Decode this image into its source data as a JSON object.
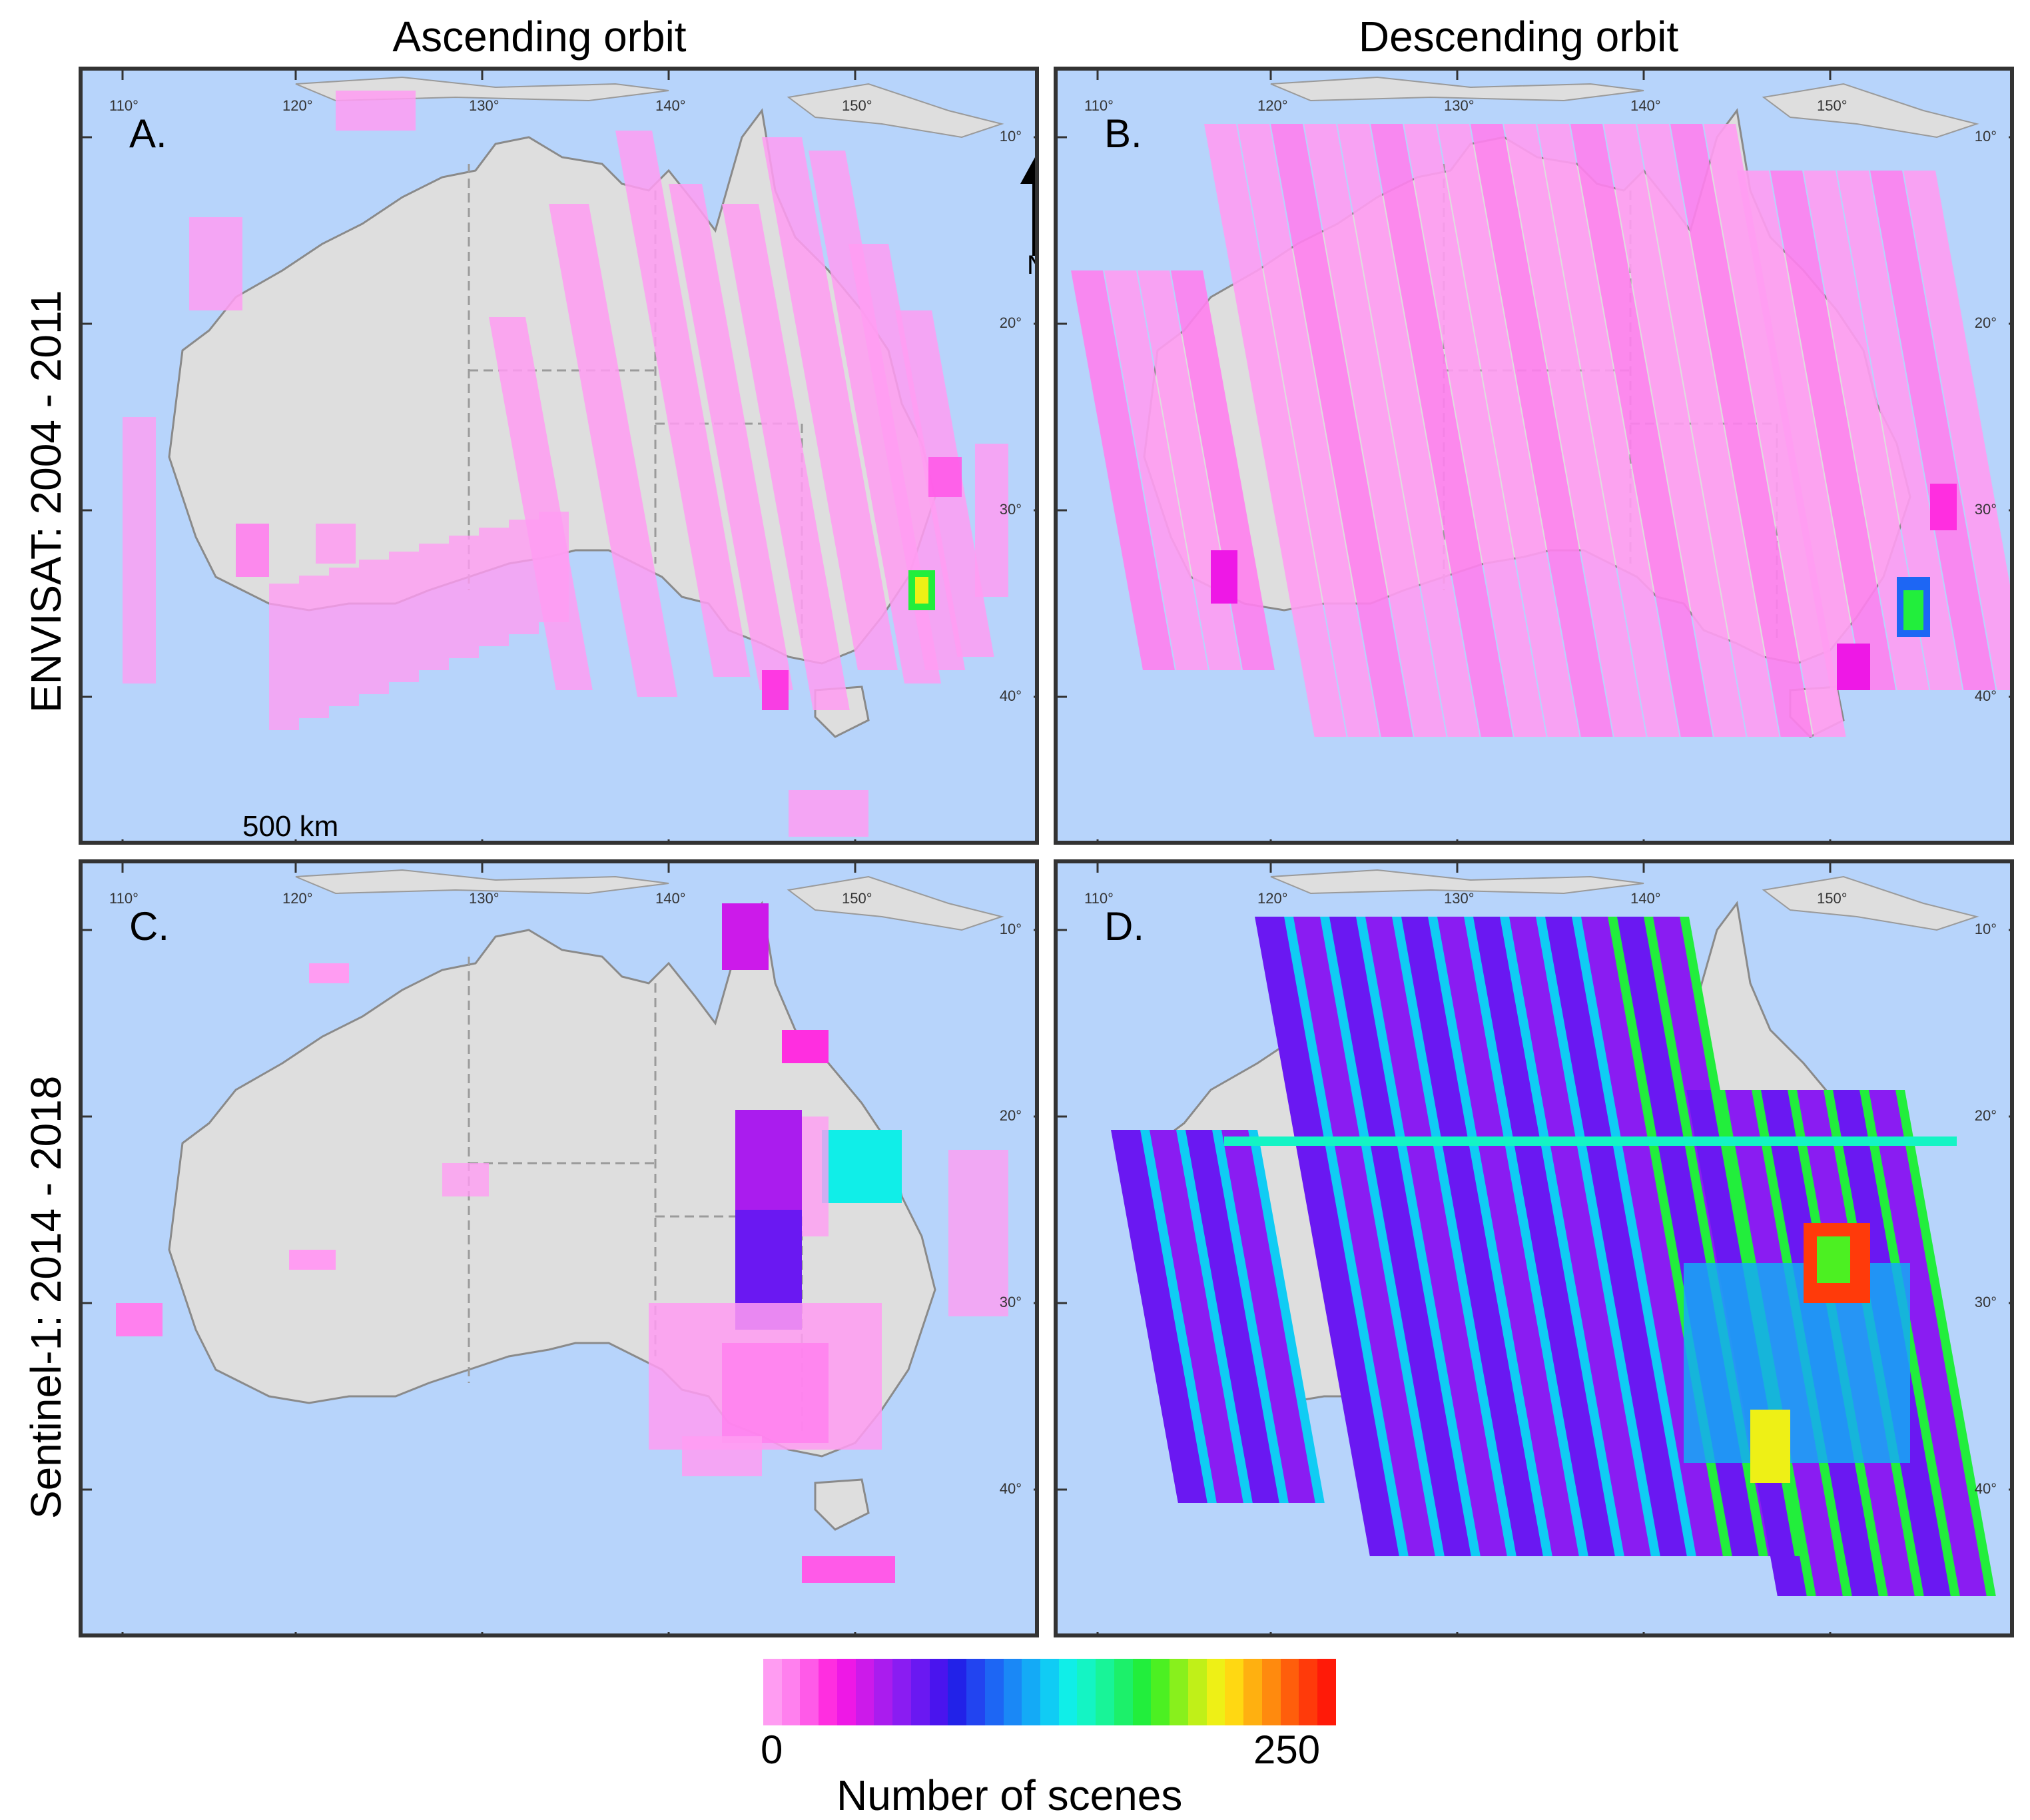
{
  "columns": {
    "ascending": "Ascending orbit",
    "descending": "Descending orbit"
  },
  "rows": {
    "envisat": "ENVISAT: 2004 - 2011",
    "sentinel": "Sentinel-1: 2014 - 2018"
  },
  "panels": [
    {
      "letter": "A.",
      "sensor": "ENVISAT",
      "orbit": "Ascending"
    },
    {
      "letter": "B.",
      "sensor": "ENVISAT",
      "orbit": "Descending"
    },
    {
      "letter": "C.",
      "sensor": "Sentinel-1",
      "orbit": "Ascending"
    },
    {
      "letter": "D.",
      "sensor": "Sentinel-1",
      "orbit": "Descending"
    }
  ],
  "lon_ticks": [
    "110°",
    "120°",
    "130°",
    "140°",
    "150°"
  ],
  "lat_ticks": [
    "10°",
    "20°",
    "30°",
    "40°"
  ],
  "north_label": "N",
  "scalebar_label": "500 km",
  "colorbar": {
    "title": "Number of scenes",
    "min_label": "0",
    "max_label": "250",
    "colors": [
      "#ff9cf2",
      "#ff80ee",
      "#ff5ae8",
      "#ff2ee0",
      "#ee18e6",
      "#cc1aea",
      "#aa1cee",
      "#8a1cf2",
      "#6a18f2",
      "#4a14ee",
      "#2222e8",
      "#2244f0",
      "#1d66f4",
      "#1a88f6",
      "#14aaf6",
      "#10ccf4",
      "#10eee8",
      "#14f4c4",
      "#18f498",
      "#1cf06a",
      "#22ee3c",
      "#4cf022",
      "#88f01c",
      "#c0f018",
      "#eef016",
      "#ffd812",
      "#ffb010",
      "#ff8a0e",
      "#ff5e0c",
      "#ff3a0a",
      "#ff1a08"
    ]
  }
}
